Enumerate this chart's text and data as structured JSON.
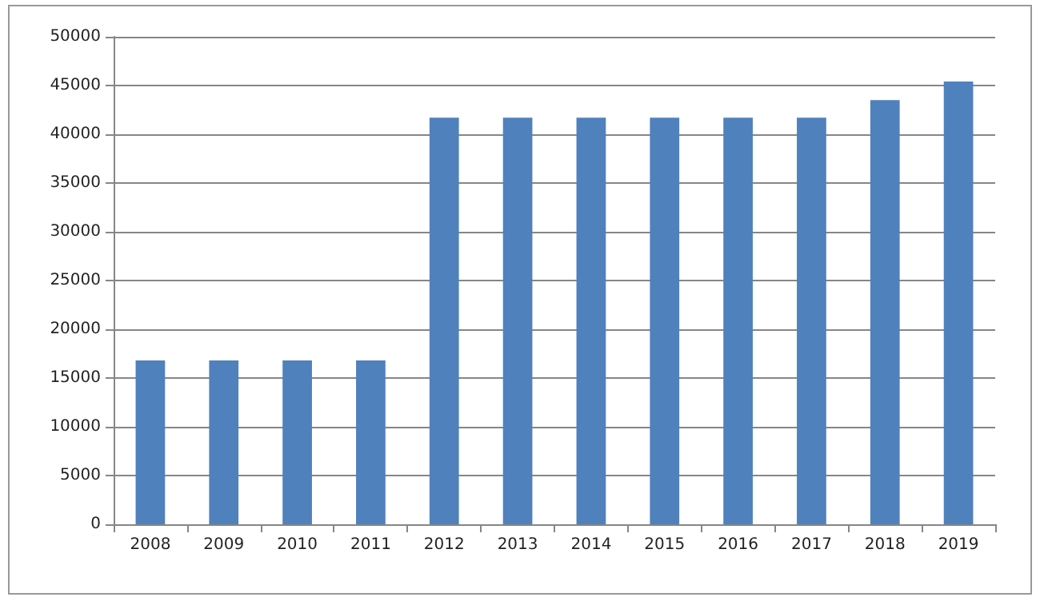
{
  "chart_data": {
    "type": "bar",
    "categories": [
      "2008",
      "2009",
      "2010",
      "2011",
      "2012",
      "2013",
      "2014",
      "2015",
      "2016",
      "2017",
      "2018",
      "2019"
    ],
    "values": [
      16800,
      16800,
      16800,
      16800,
      41700,
      41700,
      41700,
      41700,
      41700,
      41700,
      43500,
      45400
    ],
    "color": "#4f81bd",
    "ylim": [
      0,
      50000
    ],
    "yticks": [
      0,
      5000,
      10000,
      15000,
      20000,
      25000,
      30000,
      35000,
      40000,
      45000,
      50000
    ],
    "grid": "y"
  }
}
